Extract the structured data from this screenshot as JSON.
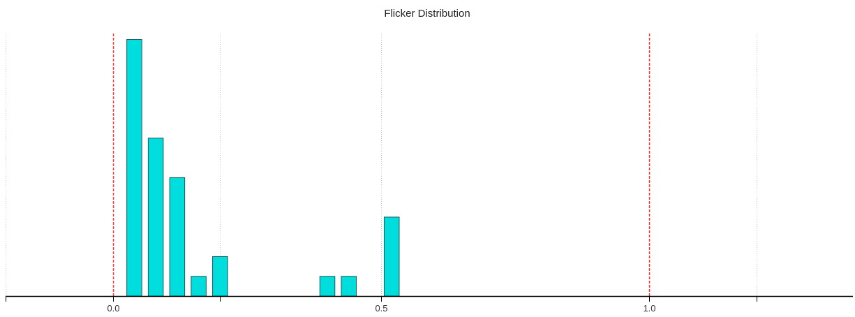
{
  "chart_data": {
    "type": "bar",
    "title": "Flicker Distribution",
    "xlabel": "",
    "ylabel": "",
    "xlim": [
      -0.2,
      1.38
    ],
    "ylim": [
      0,
      13.3
    ],
    "x_ticks": [
      {
        "value": 0.0,
        "label": "0.0"
      },
      {
        "value": 0.5,
        "label": "0.5"
      },
      {
        "value": 1.0,
        "label": "1.0"
      }
    ],
    "grid_x": [
      -0.2,
      0.2,
      1.2
    ],
    "reference_lines": [
      0.0,
      1.0
    ],
    "bar_width": 0.028,
    "series": [
      {
        "x": [
          0.04,
          0.08,
          0.12,
          0.16,
          0.2,
          0.4,
          0.44,
          0.52
        ],
        "values": [
          13,
          8,
          6,
          1,
          2,
          1,
          1,
          4
        ]
      }
    ],
    "colors": {
      "bar_fill": "#00DDDD",
      "bar_stroke": "#1E5A5A",
      "reference_line": "#FF3333",
      "grid": "#C0C0C0",
      "axis": "#000000"
    },
    "grid": true,
    "legend": "none"
  }
}
